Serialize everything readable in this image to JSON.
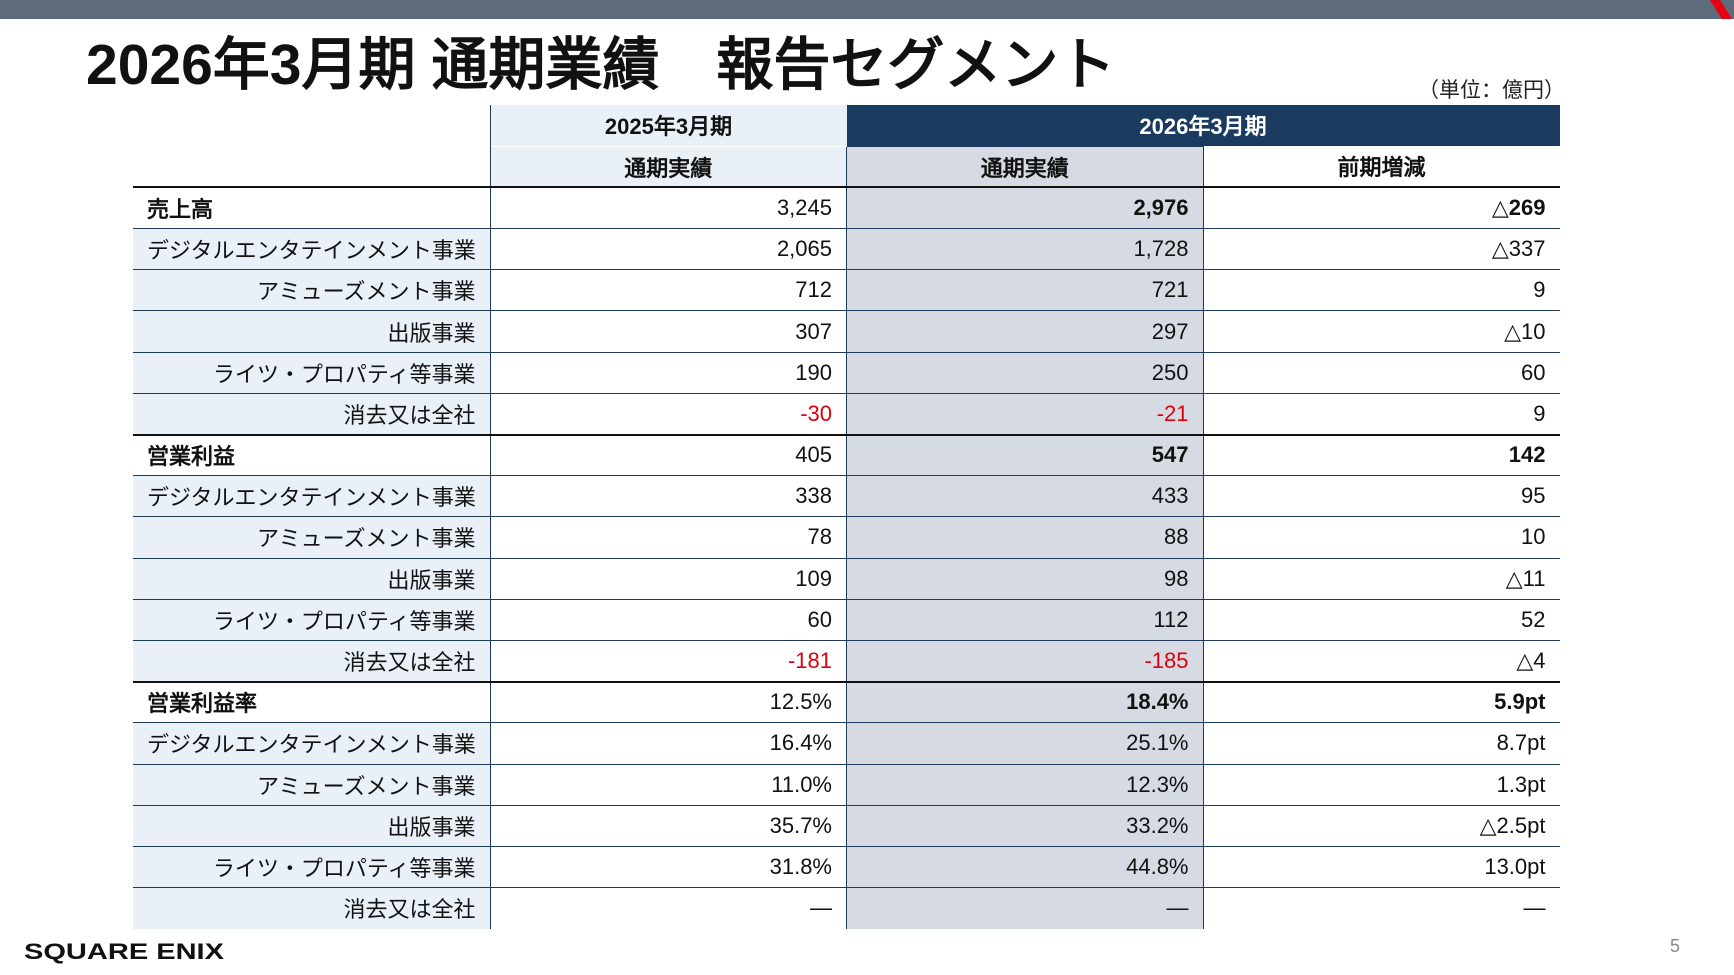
{
  "slide": {
    "title": "2026年3月期 通期業績　報告セグメント",
    "unit_note": "（単位：億円）",
    "page_number": "5",
    "logo_text": "SQUARE ENIX",
    "accent_color": "#1b3a60",
    "negative_color": "#e0000b"
  },
  "table": {
    "period_headers": {
      "prev": "2025年3月期",
      "cur": "2026年3月期"
    },
    "sub_headers": {
      "prev": "通期実績",
      "cur": "通期実績",
      "chg": "前期増減"
    },
    "rows": [
      {
        "kind": "main",
        "label": "売上高",
        "prev": "3,245",
        "cur": "2,976",
        "chg": "△269"
      },
      {
        "kind": "sub",
        "label": "デジタルエンタテインメント事業",
        "prev": "2,065",
        "cur": "1,728",
        "chg": "△337"
      },
      {
        "kind": "sub",
        "label": "アミューズメント事業",
        "prev": "712",
        "cur": "721",
        "chg": "9"
      },
      {
        "kind": "sub",
        "label": "出版事業",
        "prev": "307",
        "cur": "297",
        "chg": "△10"
      },
      {
        "kind": "sub",
        "label": "ライツ・プロパティ等事業",
        "prev": "190",
        "cur": "250",
        "chg": "60"
      },
      {
        "kind": "sub",
        "label": "消去又は全社",
        "prev": "-30",
        "cur": "-21",
        "chg": "9",
        "neg": true
      },
      {
        "kind": "main",
        "label": "営業利益",
        "prev": "405",
        "cur": "547",
        "chg": "142"
      },
      {
        "kind": "sub",
        "label": "デジタルエンタテインメント事業",
        "prev": "338",
        "cur": "433",
        "chg": "95"
      },
      {
        "kind": "sub",
        "label": "アミューズメント事業",
        "prev": "78",
        "cur": "88",
        "chg": "10"
      },
      {
        "kind": "sub",
        "label": "出版事業",
        "prev": "109",
        "cur": "98",
        "chg": "△11"
      },
      {
        "kind": "sub",
        "label": "ライツ・プロパティ等事業",
        "prev": "60",
        "cur": "112",
        "chg": "52"
      },
      {
        "kind": "sub",
        "label": "消去又は全社",
        "prev": "-181",
        "cur": "-185",
        "chg": "△4",
        "neg": true
      },
      {
        "kind": "main",
        "label": "営業利益率",
        "prev": "12.5%",
        "cur": "18.4%",
        "chg": "5.9pt"
      },
      {
        "kind": "sub",
        "label": "デジタルエンタテインメント事業",
        "prev": "16.4%",
        "cur": "25.1%",
        "chg": "8.7pt"
      },
      {
        "kind": "sub",
        "label": "アミューズメント事業",
        "prev": "11.0%",
        "cur": "12.3%",
        "chg": "1.3pt"
      },
      {
        "kind": "sub",
        "label": "出版事業",
        "prev": "35.7%",
        "cur": "33.2%",
        "chg": "△2.5pt"
      },
      {
        "kind": "sub",
        "label": "ライツ・プロパティ等事業",
        "prev": "31.8%",
        "cur": "44.8%",
        "chg": "13.0pt"
      },
      {
        "kind": "sub",
        "label": "消去又は全社",
        "prev": "―",
        "cur": "―",
        "chg": "―"
      }
    ]
  }
}
